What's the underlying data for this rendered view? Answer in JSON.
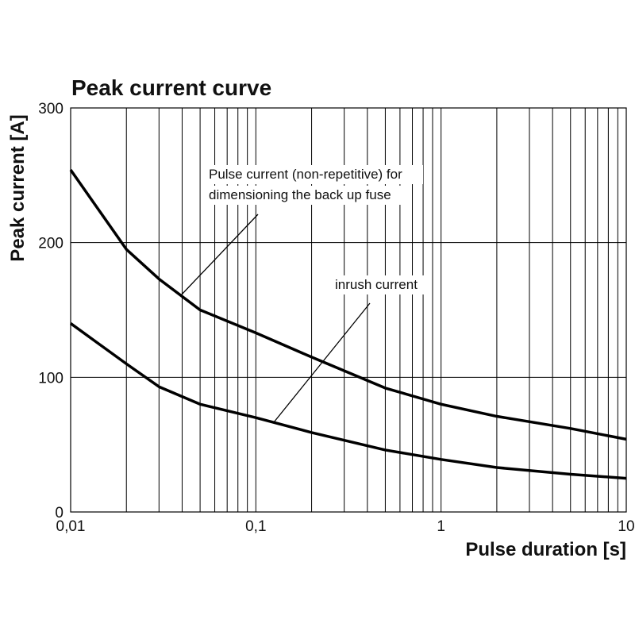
{
  "chart_data": {
    "type": "line",
    "title": "Peak current curve",
    "x_label": "Pulse duration [s]",
    "y_label": "Peak current [A]",
    "x": [
      0.01,
      0.02,
      0.03,
      0.05,
      0.1,
      0.2,
      0.5,
      1,
      2,
      5,
      10
    ],
    "series": [
      {
        "color": "#000000",
        "values": [
          254,
          195,
          173,
          150,
          133,
          115,
          92,
          80,
          71,
          62,
          54
        ]
      },
      {
        "color": "#000000",
        "values": [
          140,
          110,
          93,
          80,
          70,
          59,
          46,
          39,
          33,
          28,
          25
        ]
      }
    ],
    "xlim": [
      0.01,
      10
    ],
    "xticks": [
      {
        "value": 0.01,
        "label": "0,01"
      },
      {
        "value": 0.1,
        "label": "0,1"
      },
      1,
      10
    ],
    "x_log": true,
    "ylim": [
      0,
      300
    ],
    "yticks": [
      0,
      100,
      200,
      300
    ],
    "grid": true,
    "minor_grid": true,
    "annotations": [
      {
        "text": [
          "Pulse current (non-repetitive) for",
          "dimensioning the back up fuse"
        ]
      },
      {
        "text": [
          "inrush current"
        ]
      }
    ]
  }
}
